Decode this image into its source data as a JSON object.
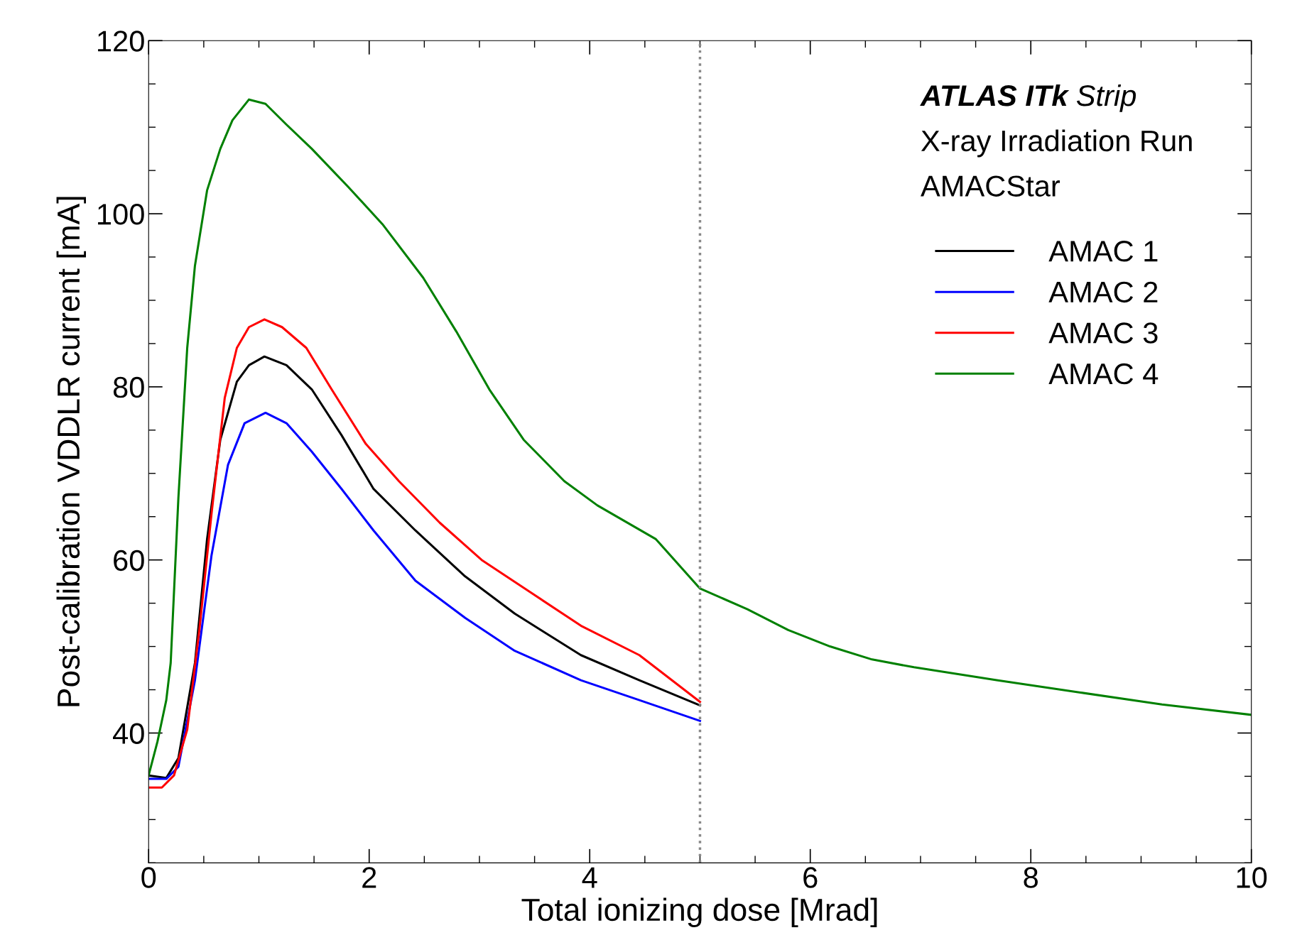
{
  "chart_data": {
    "type": "line",
    "xlabel": "Total ionizing dose [Mrad]",
    "ylabel": "Post-calibration VDDLR current [mA]",
    "xlim": [
      0,
      10
    ],
    "xticks": [
      0,
      2,
      4,
      6,
      8,
      10
    ],
    "ylim": [
      25,
      120
    ],
    "yticks": [
      40,
      60,
      80,
      100,
      120
    ],
    "grid": false,
    "legend": "top right",
    "marker": "none",
    "line_style": "solid",
    "annotations": [
      "ATLAS ITk Strip",
      "X-ray Irradiation Run",
      "AMACStar"
    ],
    "ref_lines": [
      {
        "axis": "x",
        "value": 5,
        "label": null,
        "color": "#888888",
        "line_style": "dotted"
      }
    ],
    "series": [
      {
        "name": "AMAC 1",
        "color": "#000000",
        "x": [
          0,
          0.16,
          0.27,
          0.42,
          0.53,
          0.65,
          0.8,
          0.91,
          1.05,
          1.25,
          1.48,
          1.75,
          2.04,
          2.42,
          2.87,
          3.32,
          3.92,
          4.45,
          5.0
        ],
        "values": [
          35.1,
          34.8,
          37.1,
          48.1,
          62.4,
          73.9,
          80.6,
          82.5,
          83.5,
          82.5,
          79.7,
          74.4,
          68.2,
          63.4,
          58.1,
          53.8,
          49,
          46.1,
          43.2
        ]
      },
      {
        "name": "AMAC 2",
        "color": "#0000ff",
        "x": [
          0,
          0.16,
          0.27,
          0.42,
          0.57,
          0.72,
          0.87,
          1.06,
          1.25,
          1.48,
          1.75,
          2.04,
          2.42,
          2.87,
          3.32,
          3.92,
          4.45,
          5.0
        ],
        "values": [
          34.7,
          34.7,
          36.1,
          46.1,
          60.5,
          71,
          75.8,
          77,
          75.8,
          72.5,
          68.2,
          63.4,
          57.6,
          53.3,
          49.5,
          46.1,
          43.8,
          41.4
        ]
      },
      {
        "name": "AMAC 3",
        "color": "#ff0000",
        "x": [
          0,
          0.12,
          0.23,
          0.35,
          0.46,
          0.57,
          0.69,
          0.8,
          0.91,
          1.05,
          1.21,
          1.43,
          1.66,
          1.97,
          2.27,
          2.64,
          3.02,
          3.47,
          3.92,
          4.45,
          5.0
        ],
        "values": [
          33.7,
          33.7,
          35.1,
          40.4,
          51.9,
          65.3,
          78.7,
          84.5,
          86.9,
          87.8,
          86.9,
          84.5,
          79.7,
          73.4,
          69.1,
          64.3,
          60,
          56.2,
          52.4,
          49,
          43.6
        ]
      },
      {
        "name": "AMAC 4",
        "color": "#008000",
        "x": [
          0,
          0.08,
          0.16,
          0.2,
          0.27,
          0.35,
          0.42,
          0.53,
          0.65,
          0.76,
          0.91,
          1.06,
          1.25,
          1.48,
          1.81,
          2.12,
          2.49,
          2.79,
          3.09,
          3.4,
          3.77,
          4.07,
          4.6,
          5.0,
          5.43,
          5.8,
          6.18,
          6.56,
          6.94,
          7.69,
          8.44,
          9.19,
          10
        ],
        "values": [
          35.1,
          39,
          43.8,
          48.1,
          67.2,
          84.5,
          94,
          102.7,
          107.5,
          110.8,
          113.2,
          112.7,
          110.3,
          107.5,
          103.1,
          98.8,
          92.6,
          86.4,
          79.7,
          73.9,
          69.1,
          66.3,
          62.4,
          56.7,
          54.3,
          51.9,
          50,
          48.5,
          47.6,
          46.1,
          44.7,
          43.3,
          42.1
        ]
      }
    ]
  }
}
